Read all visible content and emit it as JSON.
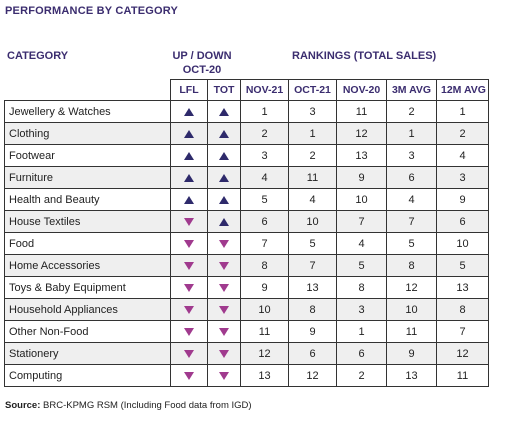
{
  "title": "PERFORMANCE BY CATEGORY",
  "headers": {
    "category": "CATEGORY",
    "up_down_line1": "UP / DOWN",
    "up_down_line2": "OCT-20",
    "rankings": "RANKINGS (TOTAL SALES)"
  },
  "columns": [
    "LFL",
    "TOT",
    "NOV-21",
    "OCT-21",
    "NOV-20",
    "3M AVG",
    "12M AVG"
  ],
  "colors": {
    "up_arrow": "#2e2a6b",
    "down_arrow": "#a03a8e",
    "heading": "#3b2d6f"
  },
  "rows": [
    {
      "category": "Jewellery & Watches",
      "lfl": "up",
      "tot": "up",
      "nov21": "1",
      "oct21": "3",
      "nov20": "11",
      "avg3m": "2",
      "avg12m": "1"
    },
    {
      "category": "Clothing",
      "lfl": "up",
      "tot": "up",
      "nov21": "2",
      "oct21": "1",
      "nov20": "12",
      "avg3m": "1",
      "avg12m": "2"
    },
    {
      "category": "Footwear",
      "lfl": "up",
      "tot": "up",
      "nov21": "3",
      "oct21": "2",
      "nov20": "13",
      "avg3m": "3",
      "avg12m": "4"
    },
    {
      "category": "Furniture",
      "lfl": "up",
      "tot": "up",
      "nov21": "4",
      "oct21": "11",
      "nov20": "9",
      "avg3m": "6",
      "avg12m": "3"
    },
    {
      "category": "Health and Beauty",
      "lfl": "up",
      "tot": "up",
      "nov21": "5",
      "oct21": "4",
      "nov20": "10",
      "avg3m": "4",
      "avg12m": "9"
    },
    {
      "category": "House Textiles",
      "lfl": "down",
      "tot": "up",
      "nov21": "6",
      "oct21": "10",
      "nov20": "7",
      "avg3m": "7",
      "avg12m": "6"
    },
    {
      "category": "Food",
      "lfl": "down",
      "tot": "down",
      "nov21": "7",
      "oct21": "5",
      "nov20": "4",
      "avg3m": "5",
      "avg12m": "10"
    },
    {
      "category": "Home Accessories",
      "lfl": "down",
      "tot": "down",
      "nov21": "8",
      "oct21": "7",
      "nov20": "5",
      "avg3m": "8",
      "avg12m": "5"
    },
    {
      "category": "Toys & Baby Equipment",
      "lfl": "down",
      "tot": "down",
      "nov21": "9",
      "oct21": "13",
      "nov20": "8",
      "avg3m": "12",
      "avg12m": "13"
    },
    {
      "category": "Household Appliances",
      "lfl": "down",
      "tot": "down",
      "nov21": "10",
      "oct21": "8",
      "nov20": "3",
      "avg3m": "10",
      "avg12m": "8"
    },
    {
      "category": "Other Non-Food",
      "lfl": "down",
      "tot": "down",
      "nov21": "11",
      "oct21": "9",
      "nov20": "1",
      "avg3m": "11",
      "avg12m": "7"
    },
    {
      "category": "Stationery",
      "lfl": "down",
      "tot": "down",
      "nov21": "12",
      "oct21": "6",
      "nov20": "6",
      "avg3m": "9",
      "avg12m": "12"
    },
    {
      "category": "Computing",
      "lfl": "down",
      "tot": "down",
      "nov21": "13",
      "oct21": "12",
      "nov20": "2",
      "avg3m": "13",
      "avg12m": "11"
    }
  ],
  "source": {
    "label": "Source:",
    "text": "BRC-KPMG RSM (Including Food data from IGD)"
  }
}
